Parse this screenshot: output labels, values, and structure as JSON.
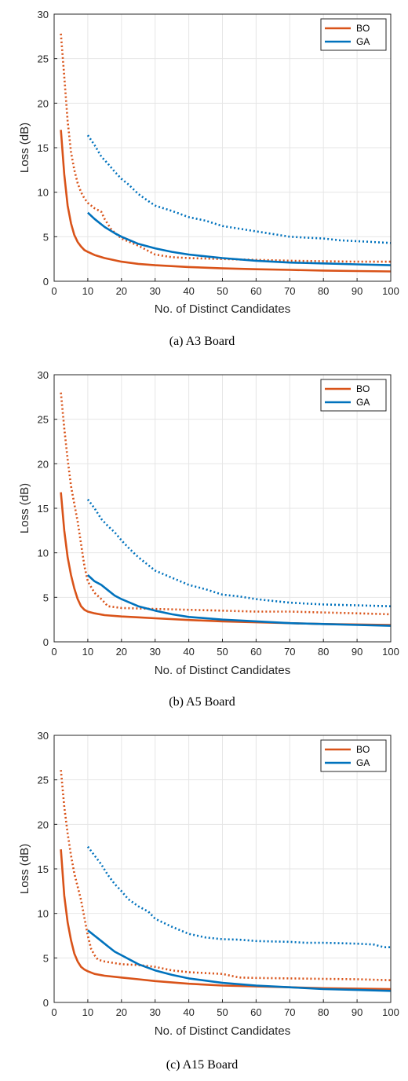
{
  "chart_data": [
    {
      "type": "line",
      "caption": "(a) A3 Board",
      "xlabel": "No. of Distinct Candidates",
      "ylabel": "Loss (dB)",
      "xlim": [
        0,
        100
      ],
      "ylim": [
        0,
        30
      ],
      "xticks": [
        0,
        10,
        20,
        30,
        40,
        50,
        60,
        70,
        80,
        90,
        100
      ],
      "yticks": [
        0,
        5,
        10,
        15,
        20,
        25,
        30
      ],
      "grid": true,
      "legend": {
        "placement": "top-right",
        "entries": [
          "BO",
          "GA"
        ]
      },
      "series": [
        {
          "name": "BO",
          "style": "solid",
          "color": "#d95319",
          "x": [
            2,
            3,
            4,
            5,
            6,
            7,
            8,
            9,
            10,
            12,
            15,
            20,
            25,
            30,
            40,
            50,
            60,
            70,
            80,
            90,
            100
          ],
          "y": [
            17.0,
            12.0,
            8.5,
            6.5,
            5.2,
            4.4,
            3.9,
            3.5,
            3.3,
            2.95,
            2.6,
            2.2,
            1.95,
            1.8,
            1.6,
            1.45,
            1.35,
            1.28,
            1.2,
            1.15,
            1.1
          ]
        },
        {
          "name": "BO",
          "style": "dotted",
          "color": "#d95319",
          "x": [
            2,
            3,
            4,
            5,
            6,
            7,
            8,
            9,
            10,
            12,
            14,
            15,
            17,
            20,
            25,
            30,
            35,
            40,
            50,
            60,
            70,
            80,
            90,
            100
          ],
          "y": [
            27.8,
            23.0,
            18.0,
            14.5,
            12.5,
            11.0,
            10.0,
            9.3,
            8.8,
            8.2,
            7.8,
            7.0,
            5.8,
            4.8,
            4.0,
            3.0,
            2.7,
            2.6,
            2.5,
            2.4,
            2.3,
            2.25,
            2.2,
            2.2
          ]
        },
        {
          "name": "GA",
          "style": "solid",
          "color": "#0072bd",
          "x": [
            10,
            12,
            15,
            18,
            20,
            25,
            30,
            35,
            40,
            50,
            60,
            70,
            80,
            90,
            100
          ],
          "y": [
            7.7,
            7.0,
            6.1,
            5.4,
            5.0,
            4.2,
            3.7,
            3.3,
            3.0,
            2.6,
            2.3,
            2.1,
            2.0,
            1.9,
            1.8
          ]
        },
        {
          "name": "GA",
          "style": "dotted",
          "color": "#0072bd",
          "x": [
            10,
            12,
            14,
            16,
            18,
            20,
            22,
            25,
            28,
            30,
            35,
            40,
            45,
            50,
            55,
            60,
            65,
            70,
            75,
            80,
            85,
            90,
            95,
            100
          ],
          "y": [
            16.4,
            15.3,
            14.0,
            13.2,
            12.3,
            11.5,
            10.9,
            9.8,
            9.0,
            8.5,
            7.9,
            7.2,
            6.8,
            6.2,
            5.9,
            5.6,
            5.3,
            5.0,
            4.9,
            4.8,
            4.6,
            4.5,
            4.4,
            4.3
          ]
        }
      ]
    },
    {
      "type": "line",
      "caption": "(b) A5 Board",
      "xlabel": "No. of Distinct Candidates",
      "ylabel": "Loss (dB)",
      "xlim": [
        0,
        100
      ],
      "ylim": [
        0,
        30
      ],
      "xticks": [
        0,
        10,
        20,
        30,
        40,
        50,
        60,
        70,
        80,
        90,
        100
      ],
      "yticks": [
        0,
        5,
        10,
        15,
        20,
        25,
        30
      ],
      "grid": true,
      "legend": {
        "placement": "top-right",
        "entries": [
          "BO",
          "GA"
        ]
      },
      "series": [
        {
          "name": "BO",
          "style": "solid",
          "color": "#d95319",
          "x": [
            2,
            3,
            4,
            5,
            6,
            7,
            8,
            9,
            10,
            12,
            15,
            20,
            25,
            30,
            40,
            50,
            60,
            70,
            80,
            90,
            100
          ],
          "y": [
            16.8,
            12.5,
            9.5,
            7.5,
            6.0,
            4.8,
            4.0,
            3.6,
            3.4,
            3.2,
            3.0,
            2.85,
            2.75,
            2.65,
            2.45,
            2.3,
            2.2,
            2.1,
            2.0,
            1.95,
            1.9
          ]
        },
        {
          "name": "BO",
          "style": "dotted",
          "color": "#d95319",
          "x": [
            2,
            3,
            4,
            5,
            6,
            7,
            8,
            9,
            10,
            12,
            14,
            16,
            20,
            30,
            40,
            50,
            60,
            70,
            80,
            90,
            100
          ],
          "y": [
            28.0,
            24.0,
            20.5,
            17.5,
            15.5,
            13.5,
            11.0,
            8.5,
            6.8,
            5.5,
            4.8,
            4.0,
            3.8,
            3.7,
            3.6,
            3.5,
            3.4,
            3.4,
            3.3,
            3.2,
            3.1
          ]
        },
        {
          "name": "GA",
          "style": "solid",
          "color": "#0072bd",
          "x": [
            10,
            12,
            14,
            16,
            18,
            20,
            25,
            30,
            35,
            40,
            50,
            60,
            70,
            80,
            90,
            100
          ],
          "y": [
            7.5,
            6.8,
            6.4,
            5.8,
            5.2,
            4.8,
            4.0,
            3.5,
            3.1,
            2.8,
            2.5,
            2.3,
            2.1,
            2.0,
            1.9,
            1.8
          ]
        },
        {
          "name": "GA",
          "style": "dotted",
          "color": "#0072bd",
          "x": [
            10,
            12,
            14,
            16,
            18,
            20,
            22,
            25,
            28,
            30,
            35,
            40,
            45,
            50,
            55,
            60,
            65,
            70,
            75,
            80,
            85,
            90,
            95,
            100
          ],
          "y": [
            16.0,
            15.0,
            13.8,
            13.0,
            12.3,
            11.4,
            10.6,
            9.5,
            8.6,
            8.0,
            7.2,
            6.4,
            5.9,
            5.3,
            5.1,
            4.8,
            4.6,
            4.4,
            4.3,
            4.2,
            4.15,
            4.1,
            4.05,
            4.0
          ]
        }
      ]
    },
    {
      "type": "line",
      "caption": "(c) A15 Board",
      "xlabel": "No. of Distinct Candidates",
      "ylabel": "Loss (dB)",
      "xlim": [
        0,
        100
      ],
      "ylim": [
        0,
        30
      ],
      "xticks": [
        0,
        10,
        20,
        30,
        40,
        50,
        60,
        70,
        80,
        90,
        100
      ],
      "yticks": [
        0,
        5,
        10,
        15,
        20,
        25,
        30
      ],
      "grid": true,
      "legend": {
        "placement": "top-right",
        "entries": [
          "BO",
          "GA"
        ]
      },
      "series": [
        {
          "name": "BO",
          "style": "solid",
          "color": "#d95319",
          "x": [
            2,
            3,
            4,
            5,
            6,
            7,
            8,
            9,
            10,
            12,
            15,
            20,
            25,
            30,
            40,
            50,
            60,
            70,
            80,
            90,
            100
          ],
          "y": [
            17.2,
            12.0,
            9.0,
            7.0,
            5.5,
            4.6,
            4.0,
            3.7,
            3.5,
            3.2,
            3.0,
            2.8,
            2.6,
            2.4,
            2.1,
            1.9,
            1.8,
            1.7,
            1.6,
            1.55,
            1.5
          ]
        },
        {
          "name": "BO",
          "style": "dotted",
          "color": "#d95319",
          "x": [
            2,
            3,
            4,
            5,
            6,
            7,
            8,
            9,
            10,
            11,
            12,
            13,
            15,
            20,
            25,
            30,
            35,
            40,
            50,
            55,
            60,
            70,
            80,
            90,
            100
          ],
          "y": [
            26.1,
            22.0,
            19.0,
            16.5,
            14.5,
            13.0,
            11.5,
            9.5,
            7.5,
            6.0,
            5.3,
            4.8,
            4.6,
            4.3,
            4.2,
            4.0,
            3.6,
            3.4,
            3.2,
            2.8,
            2.75,
            2.7,
            2.65,
            2.6,
            2.5
          ]
        },
        {
          "name": "GA",
          "style": "solid",
          "color": "#0072bd",
          "x": [
            10,
            12,
            14,
            16,
            18,
            20,
            25,
            30,
            35,
            40,
            50,
            60,
            70,
            80,
            90,
            100
          ],
          "y": [
            8.1,
            7.5,
            6.9,
            6.3,
            5.7,
            5.3,
            4.3,
            3.6,
            3.1,
            2.7,
            2.2,
            1.9,
            1.7,
            1.5,
            1.4,
            1.3
          ]
        },
        {
          "name": "GA",
          "style": "dotted",
          "color": "#0072bd",
          "x": [
            10,
            12,
            14,
            16,
            18,
            20,
            22,
            25,
            28,
            30,
            35,
            40,
            45,
            50,
            55,
            60,
            65,
            70,
            75,
            80,
            85,
            90,
            95,
            98,
            100
          ],
          "y": [
            17.5,
            16.5,
            15.5,
            14.3,
            13.3,
            12.5,
            11.6,
            10.8,
            10.2,
            9.4,
            8.5,
            7.7,
            7.3,
            7.1,
            7.05,
            6.9,
            6.85,
            6.8,
            6.7,
            6.7,
            6.65,
            6.6,
            6.5,
            6.2,
            6.2
          ]
        }
      ]
    }
  ]
}
